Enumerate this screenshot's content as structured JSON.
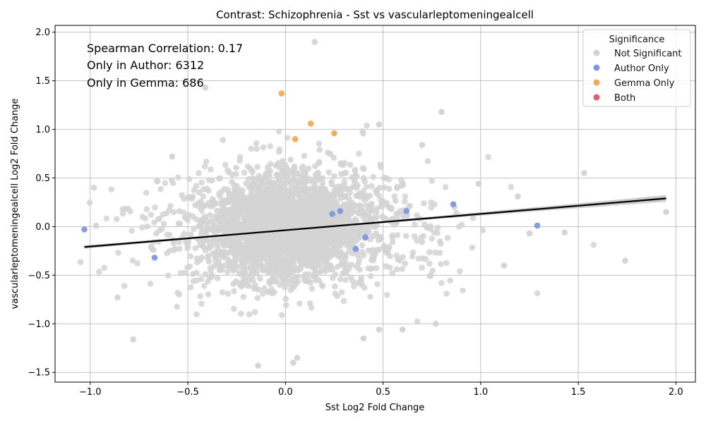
{
  "chart_data": {
    "type": "scatter",
    "title": "Contrast: Schizophrenia - Sst vs vascularleptomeningealcell",
    "xlabel": "Sst Log2 Fold Change",
    "ylabel": "vascularleptomeningealcell Log2 Fold Change",
    "xlim": [
      -1.18,
      2.1
    ],
    "ylim": [
      -1.6,
      2.07
    ],
    "x_ticks": [
      -1.0,
      -0.5,
      0.0,
      0.5,
      1.0,
      1.5,
      2.0
    ],
    "x_tick_labels": [
      "−1.0",
      "−0.5",
      "0.0",
      "0.5",
      "1.0",
      "1.5",
      "2.0"
    ],
    "y_ticks": [
      -1.5,
      -1.0,
      -0.5,
      0.0,
      0.5,
      1.0,
      1.5,
      2.0
    ],
    "y_tick_labels": [
      "−1.5",
      "−1.0",
      "−0.5",
      "0.0",
      "0.5",
      "1.0",
      "1.5",
      "2.0"
    ],
    "grid": true,
    "annotations": [
      "Spearman Correlation: 0.17",
      "Only in Author: 6312",
      "Only in Gemma: 686"
    ],
    "legend": {
      "title": "Significance",
      "placement": "top-right",
      "entries": [
        {
          "label": "Not Significant",
          "color": "#d3d3d3"
        },
        {
          "label": "Author Only",
          "color": "#7f96e0"
        },
        {
          "label": "Gemma Only",
          "color": "#f7a94e"
        },
        {
          "label": "Both",
          "color": "#de5f72"
        }
      ]
    },
    "regression_line": {
      "x": [
        -1.03,
        1.95
      ],
      "y": [
        -0.21,
        0.29
      ],
      "color": "#000000"
    },
    "series": [
      {
        "name": "Author Only",
        "color": "#7f96e0",
        "points": [
          [
            -1.03,
            -0.03
          ],
          [
            -0.67,
            -0.32
          ],
          [
            0.28,
            0.16
          ],
          [
            0.41,
            -0.11
          ],
          [
            0.36,
            -0.23
          ],
          [
            0.62,
            0.16
          ],
          [
            0.86,
            0.23
          ],
          [
            1.29,
            0.01
          ],
          [
            0.24,
            0.13
          ]
        ]
      },
      {
        "name": "Gemma Only",
        "color": "#f7a94e",
        "points": [
          [
            -0.02,
            1.37
          ],
          [
            0.05,
            0.9
          ],
          [
            0.13,
            1.06
          ],
          [
            0.25,
            0.96
          ]
        ]
      },
      {
        "name": "Not Significant (outliers)",
        "color": "#d3d3d3",
        "points": [
          [
            0.15,
            1.9
          ],
          [
            -0.41,
            1.43
          ],
          [
            0.48,
            1.05
          ],
          [
            0.8,
            1.18
          ],
          [
            1.53,
            0.55
          ],
          [
            1.74,
            -0.35
          ],
          [
            1.95,
            0.15
          ],
          [
            -0.97,
            0.01
          ],
          [
            -0.78,
            -1.16
          ],
          [
            -0.86,
            -0.73
          ],
          [
            -0.14,
            -1.43
          ],
          [
            0.04,
            -1.4
          ],
          [
            0.06,
            -1.35
          ],
          [
            0.4,
            -1.15
          ],
          [
            0.77,
            -1.0
          ],
          [
            0.48,
            -1.06
          ],
          [
            0.6,
            -1.06
          ],
          [
            1.43,
            -0.06
          ],
          [
            1.25,
            -0.07
          ],
          [
            1.12,
            -0.4
          ],
          [
            0.99,
            0.44
          ],
          [
            0.7,
            0.84
          ],
          [
            1.19,
            0.31
          ],
          [
            -0.58,
            0.72
          ]
        ]
      }
    ],
    "background_cloud": {
      "label": "Not Significant",
      "approx_count": 6312,
      "center": [
        0.0,
        0.0
      ],
      "color": "#d3d3d3"
    }
  }
}
